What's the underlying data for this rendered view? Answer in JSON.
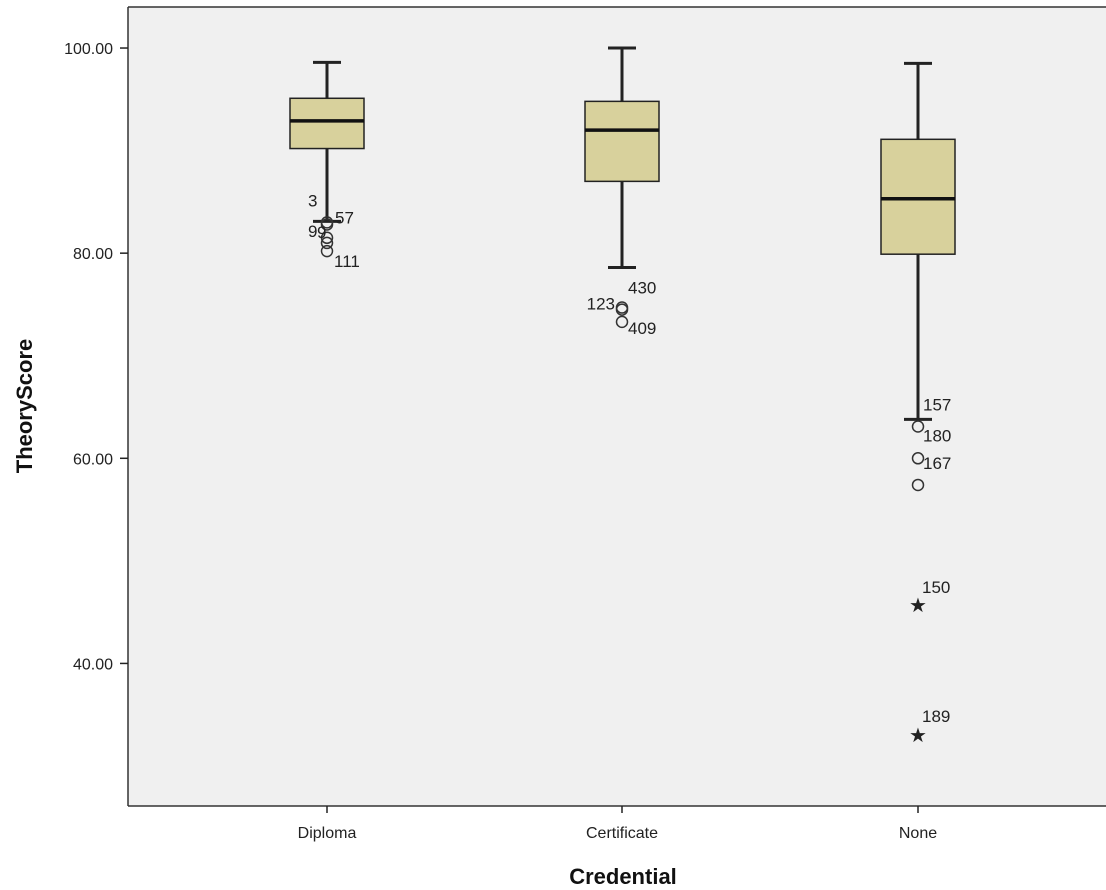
{
  "chart_data": {
    "type": "boxplot",
    "xlabel": "Credential",
    "ylabel": "TheoryScore",
    "ylim": [
      26.1,
      104
    ],
    "yticks": [
      40,
      60,
      80,
      100
    ],
    "ytick_labels": [
      "40.00",
      "60.00",
      "80.00",
      "100.00"
    ],
    "grid": false,
    "colors": {
      "box_fill": "#d8d19c",
      "plot_bg": "#f0f0f0",
      "line": "#222222"
    },
    "categories": [
      "Diploma",
      "Certificate",
      "None"
    ],
    "boxes": [
      {
        "category": "Diploma",
        "whisker_low": 83.1,
        "q1": 90.2,
        "median": 92.9,
        "q3": 95.1,
        "whisker_high": 98.6,
        "outliers": [
          {
            "label": "3",
            "value": 83.0,
            "marker": "circle"
          },
          {
            "label": "57",
            "value": 82.8,
            "marker": "circle"
          },
          {
            "label": "9",
            "value": 81.5,
            "marker": "circle"
          },
          {
            "label": "9",
            "value": 81.0,
            "marker": "circle"
          },
          {
            "label": "111",
            "value": 80.2,
            "marker": "circle"
          }
        ]
      },
      {
        "category": "Certificate",
        "whisker_low": 78.6,
        "q1": 87.0,
        "median": 92.0,
        "q3": 94.8,
        "whisker_high": 100.0,
        "outliers": [
          {
            "label": "430",
            "value": 74.7,
            "marker": "circle"
          },
          {
            "label": "123",
            "value": 74.5,
            "marker": "circle"
          },
          {
            "label": "409",
            "value": 73.3,
            "marker": "circle"
          }
        ]
      },
      {
        "category": "None",
        "whisker_low": 63.8,
        "q1": 79.9,
        "median": 85.3,
        "q3": 91.1,
        "whisker_high": 98.5,
        "outliers": [
          {
            "label": "157",
            "value": 63.1,
            "marker": "circle"
          },
          {
            "label": "180",
            "value": 60.0,
            "marker": "circle"
          },
          {
            "label": "167",
            "value": 57.4,
            "marker": "circle"
          },
          {
            "label": "150",
            "value": 45.7,
            "marker": "star"
          },
          {
            "label": "189",
            "value": 33.0,
            "marker": "star"
          }
        ]
      }
    ]
  }
}
